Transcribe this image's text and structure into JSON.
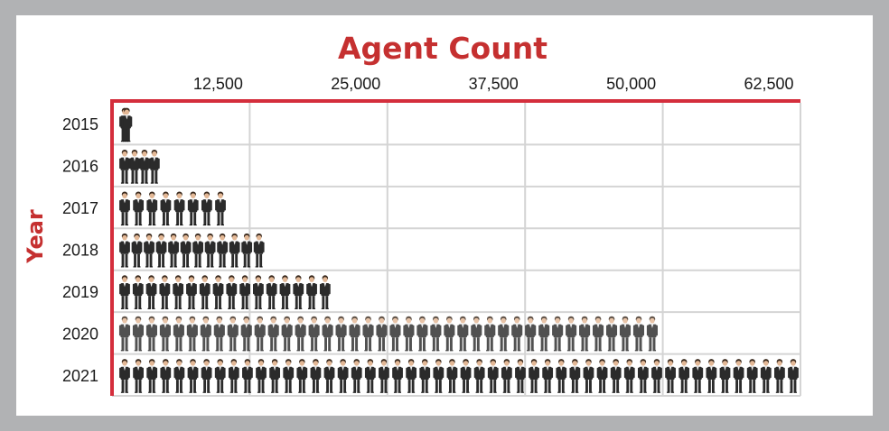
{
  "chart_data": {
    "type": "pictograph",
    "title": "Agent Count",
    "xlabel": "",
    "ylabel": "Year",
    "x_tick_labels": [
      "12,500",
      "25,000",
      "37,500",
      "50,000",
      "62,500"
    ],
    "x_ticks": [
      12500,
      25000,
      37500,
      50000,
      62500
    ],
    "xlim": [
      0,
      62500
    ],
    "categories": [
      "2015",
      "2016",
      "2017",
      "2018",
      "2019",
      "2020",
      "2021"
    ],
    "values": [
      2000,
      4500,
      10500,
      14000,
      20000,
      49700,
      62500
    ],
    "icon": "person-icon",
    "icon_count": [
      2,
      4,
      8,
      12,
      16,
      40,
      50
    ],
    "grid": true,
    "colors": {
      "title": "#c53030",
      "axis": "#d42e3c",
      "grid": "#d4d4d4",
      "suit": "#2b2b2b",
      "skin": "#e3b896",
      "hair": "#3a2a1e",
      "background": "#b1b2b4"
    }
  }
}
